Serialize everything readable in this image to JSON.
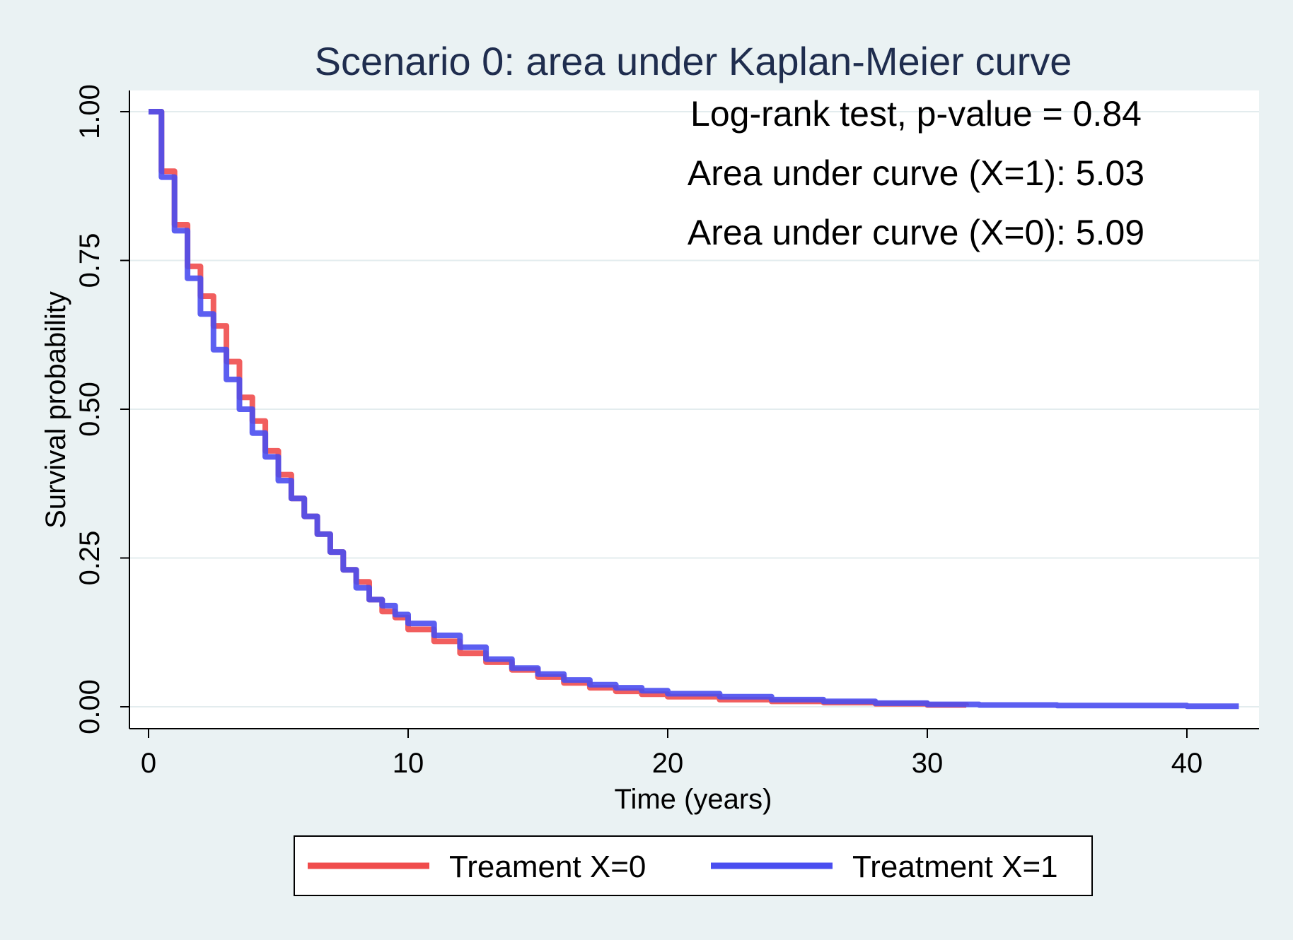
{
  "chart_data": {
    "type": "line",
    "title": "Scenario 0: area under Kaplan-Meier curve",
    "xlabel": "Time (years)",
    "ylabel": "Survival probability",
    "xlim": [
      0,
      42
    ],
    "ylim": [
      0,
      1
    ],
    "x_ticks": [
      0,
      10,
      20,
      30,
      40
    ],
    "x_tick_labels": [
      "0",
      "10",
      "20",
      "30",
      "40"
    ],
    "y_ticks": [
      0,
      0.25,
      0.5,
      0.75,
      1.0
    ],
    "y_tick_labels": [
      "0.00",
      "0.25",
      "0.50",
      "0.75",
      "1.00"
    ],
    "grid": "horizontal",
    "legend_position": "bottom",
    "annotations": [
      "Log-rank test, p-value = 0.84",
      "Area under curve (X=1): 5.03",
      "Area under curve (X=0): 5.09"
    ],
    "series": [
      {
        "name": "Treament X=0",
        "color": "#f04c4c",
        "x": [
          0,
          0.5,
          1,
          1.5,
          2,
          2.5,
          3,
          3.5,
          4,
          4.5,
          5,
          5.5,
          6,
          6.5,
          7,
          7.5,
          8,
          8.5,
          9,
          9.5,
          10,
          11,
          12,
          13,
          14,
          15,
          16,
          17,
          18,
          19,
          20,
          22,
          24,
          26,
          28,
          30,
          31.5
        ],
        "y": [
          1.0,
          0.9,
          0.81,
          0.74,
          0.69,
          0.64,
          0.58,
          0.52,
          0.48,
          0.43,
          0.39,
          0.35,
          0.32,
          0.29,
          0.26,
          0.23,
          0.21,
          0.18,
          0.16,
          0.15,
          0.13,
          0.11,
          0.09,
          0.075,
          0.062,
          0.05,
          0.04,
          0.032,
          0.026,
          0.021,
          0.017,
          0.012,
          0.009,
          0.007,
          0.005,
          0.003,
          0.002
        ]
      },
      {
        "name": "Treatment X=1",
        "color": "#4a4ef0",
        "x": [
          0,
          0.5,
          1,
          1.5,
          2,
          2.5,
          3,
          3.5,
          4,
          4.5,
          5,
          5.5,
          6,
          6.5,
          7,
          7.5,
          8,
          8.5,
          9,
          9.5,
          10,
          11,
          12,
          13,
          14,
          15,
          16,
          17,
          18,
          19,
          20,
          22,
          24,
          26,
          28,
          30,
          32,
          35,
          38,
          40,
          42
        ],
        "y": [
          1.0,
          0.89,
          0.8,
          0.72,
          0.66,
          0.6,
          0.55,
          0.5,
          0.46,
          0.42,
          0.38,
          0.35,
          0.32,
          0.29,
          0.26,
          0.23,
          0.2,
          0.18,
          0.17,
          0.155,
          0.14,
          0.12,
          0.1,
          0.08,
          0.065,
          0.055,
          0.045,
          0.037,
          0.032,
          0.027,
          0.022,
          0.017,
          0.012,
          0.009,
          0.006,
          0.004,
          0.003,
          0.002,
          0.002,
          0.001,
          0.001
        ]
      }
    ]
  }
}
